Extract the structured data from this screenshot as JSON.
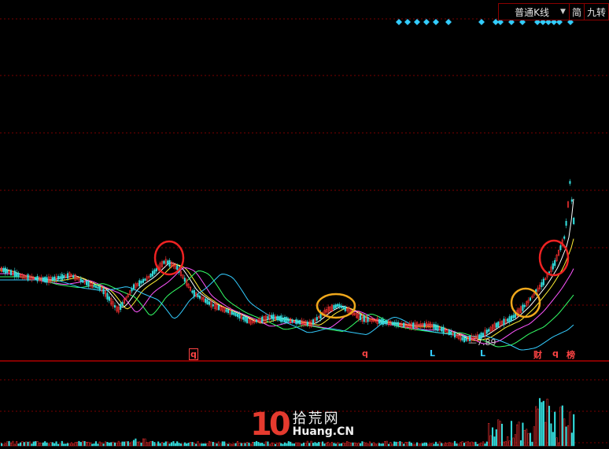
{
  "toolbar": {
    "chart_type_select": "普通K线",
    "btn_simplified": "简",
    "btn_nine_turn": "九转"
  },
  "price_panel": {
    "low_marker": "7.89",
    "signal_markers": [
      {
        "label": "q",
        "color": "#ff4444"
      },
      {
        "label": "q",
        "color": "#ff4444"
      },
      {
        "label": "L",
        "color": "#33ccff"
      },
      {
        "label": "L",
        "color": "#33ccff"
      },
      {
        "label": "财",
        "color": "#ff4444"
      },
      {
        "label": "q",
        "color": "#ff4444"
      },
      {
        "label": "榜",
        "color": "#ff4444"
      }
    ]
  },
  "watermark": {
    "number": "10",
    "cn": "拾荒网",
    "en": "Huang.CN"
  },
  "colors": {
    "up": "#ff3333",
    "down": "#33dddd",
    "ma_white": "#ffffff",
    "ma_yellow": "#ffee33",
    "ma_green": "#33ff66",
    "ma_cyan": "#33ccff",
    "ma_magenta": "#ff55ff",
    "grid": "#7a0000",
    "circle_red": "#ee2222",
    "circle_orange": "#f0a81c",
    "diamond": "#33ccff"
  },
  "icons": [
    "dropdown-arrow-icon",
    "diamond-signal-icon"
  ]
}
